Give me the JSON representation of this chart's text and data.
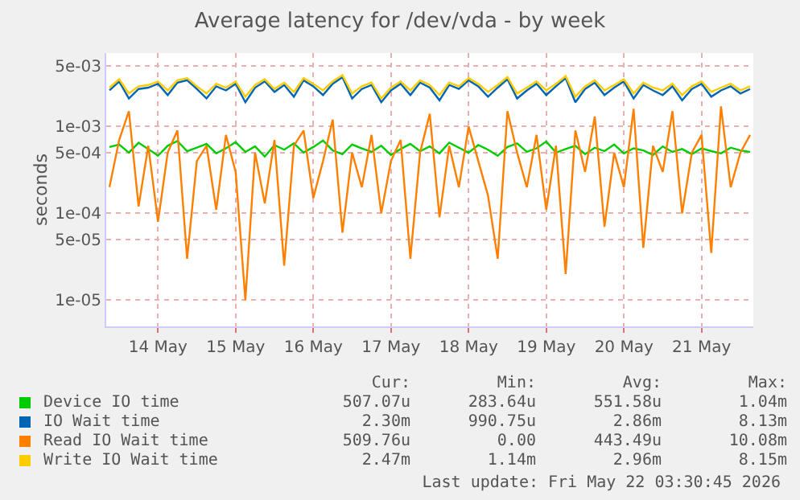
{
  "chart_data": {
    "type": "line",
    "title": "Average latency for /dev/vda - by week",
    "ylabel": "seconds",
    "log": true,
    "grid": true,
    "legend": "bottom",
    "marker": "none",
    "line_style": "solid",
    "xlim": [
      "2026-05-13T20:00",
      "2026-05-22T04:00"
    ],
    "xticks": [
      {
        "value": "2026-05-14T12:00",
        "label": "14 May"
      },
      {
        "value": "2026-05-15T12:00",
        "label": "15 May"
      },
      {
        "value": "2026-05-16T12:00",
        "label": "16 May"
      },
      {
        "value": "2026-05-17T12:00",
        "label": "17 May"
      },
      {
        "value": "2026-05-18T12:00",
        "label": "18 May"
      },
      {
        "value": "2026-05-19T12:00",
        "label": "19 May"
      },
      {
        "value": "2026-05-20T12:00",
        "label": "20 May"
      },
      {
        "value": "2026-05-21T12:00",
        "label": "21 May"
      }
    ],
    "ylim": [
      5e-06,
      0.007
    ],
    "yticks": [
      {
        "value": 1e-05,
        "label": "1e-05"
      },
      {
        "value": 5e-05,
        "label": "5e-05"
      },
      {
        "value": 0.0001,
        "label": "1e-04"
      },
      {
        "value": 0.0005,
        "label": "5e-04"
      },
      {
        "value": 0.001,
        "label": "1e-03"
      },
      {
        "value": 0.005,
        "label": "5e-03"
      }
    ],
    "x": [
      "2026-05-13T21:00",
      "2026-05-14T00:00",
      "2026-05-14T03:00",
      "2026-05-14T06:00",
      "2026-05-14T09:00",
      "2026-05-14T12:00",
      "2026-05-14T15:00",
      "2026-05-14T18:00",
      "2026-05-14T21:00",
      "2026-05-15T00:00",
      "2026-05-15T03:00",
      "2026-05-15T06:00",
      "2026-05-15T09:00",
      "2026-05-15T12:00",
      "2026-05-15T15:00",
      "2026-05-15T18:00",
      "2026-05-15T21:00",
      "2026-05-16T00:00",
      "2026-05-16T03:00",
      "2026-05-16T06:00",
      "2026-05-16T09:00",
      "2026-05-16T12:00",
      "2026-05-16T15:00",
      "2026-05-16T18:00",
      "2026-05-16T21:00",
      "2026-05-17T00:00",
      "2026-05-17T03:00",
      "2026-05-17T06:00",
      "2026-05-17T09:00",
      "2026-05-17T12:00",
      "2026-05-17T15:00",
      "2026-05-17T18:00",
      "2026-05-17T21:00",
      "2026-05-18T00:00",
      "2026-05-18T03:00",
      "2026-05-18T06:00",
      "2026-05-18T09:00",
      "2026-05-18T12:00",
      "2026-05-18T15:00",
      "2026-05-18T18:00",
      "2026-05-18T21:00",
      "2026-05-19T00:00",
      "2026-05-19T03:00",
      "2026-05-19T06:00",
      "2026-05-19T09:00",
      "2026-05-19T12:00",
      "2026-05-19T15:00",
      "2026-05-19T18:00",
      "2026-05-19T21:00",
      "2026-05-20T00:00",
      "2026-05-20T03:00",
      "2026-05-20T06:00",
      "2026-05-20T09:00",
      "2026-05-20T12:00",
      "2026-05-20T15:00",
      "2026-05-20T18:00",
      "2026-05-20T21:00",
      "2026-05-21T00:00",
      "2026-05-21T03:00",
      "2026-05-21T06:00",
      "2026-05-21T09:00",
      "2026-05-21T12:00",
      "2026-05-21T15:00",
      "2026-05-21T18:00",
      "2026-05-21T21:00",
      "2026-05-22T00:00",
      "2026-05-22T03:00"
    ],
    "series": [
      {
        "name": "Device IO time",
        "color": "#00cc00",
        "values": [
          0.00058,
          0.00062,
          0.0005,
          0.00065,
          0.00055,
          0.00046,
          0.0006,
          0.00068,
          0.00052,
          0.00057,
          0.00063,
          0.00049,
          0.00056,
          0.00066,
          0.00051,
          0.00059,
          0.00045,
          0.00061,
          0.00054,
          0.00064,
          0.0005,
          0.00058,
          0.00069,
          0.00053,
          0.00048,
          0.00062,
          0.00056,
          0.00051,
          0.0006,
          0.00047,
          0.00055,
          0.00063,
          0.00052,
          0.00059,
          0.00049,
          0.00065,
          0.00057,
          0.0005,
          0.00061,
          0.00054,
          0.00046,
          0.00058,
          0.00064,
          0.00051,
          0.00056,
          0.00067,
          0.0005,
          0.00055,
          0.0006,
          0.00048,
          0.00057,
          0.00052,
          0.00062,
          0.00049,
          0.00056,
          0.00053,
          0.00047,
          0.00059,
          0.00051,
          0.00055,
          0.00048,
          0.00056,
          0.00052,
          0.00049,
          0.00057,
          0.00053,
          0.00051
        ]
      },
      {
        "name": "IO Wait time",
        "color": "#0066b3",
        "values": [
          0.0026,
          0.0033,
          0.0021,
          0.0027,
          0.0028,
          0.0031,
          0.0023,
          0.0032,
          0.0034,
          0.0027,
          0.0021,
          0.0029,
          0.0026,
          0.0031,
          0.0019,
          0.0028,
          0.0033,
          0.0025,
          0.003,
          0.0022,
          0.0034,
          0.0029,
          0.0023,
          0.0031,
          0.0037,
          0.0021,
          0.0027,
          0.003,
          0.0019,
          0.0026,
          0.0031,
          0.0023,
          0.0032,
          0.0028,
          0.002,
          0.003,
          0.0027,
          0.0034,
          0.0029,
          0.0022,
          0.0028,
          0.0035,
          0.0021,
          0.0026,
          0.0031,
          0.0023,
          0.0029,
          0.0036,
          0.0019,
          0.0027,
          0.0032,
          0.0023,
          0.0028,
          0.0033,
          0.0021,
          0.003,
          0.0026,
          0.0023,
          0.0029,
          0.002,
          0.0027,
          0.0031,
          0.0022,
          0.0026,
          0.0029,
          0.0024,
          0.0027
        ]
      },
      {
        "name": "Read IO Wait time",
        "color": "#ff8000",
        "values": [
          0.0002,
          0.0007,
          0.0015,
          0.00012,
          0.0006,
          8e-05,
          0.0005,
          0.0009,
          3e-05,
          0.0004,
          0.0006,
          0.00011,
          0.0008,
          0.0003,
          1e-05,
          0.0005,
          0.00013,
          0.0007,
          2.5e-05,
          0.0006,
          0.0009,
          0.00015,
          0.0004,
          0.0012,
          6e-05,
          0.0005,
          0.0002,
          0.0008,
          0.0001,
          0.0004,
          0.0007,
          3e-05,
          0.0005,
          0.0014,
          9e-05,
          0.0006,
          0.0002,
          0.001,
          0.0004,
          0.00016,
          3e-05,
          0.0015,
          0.0005,
          0.0002,
          0.0008,
          0.00011,
          0.0006,
          2e-05,
          0.0009,
          0.0003,
          0.0013,
          7e-05,
          0.0005,
          0.0002,
          0.0016,
          4e-05,
          0.0006,
          0.0003,
          0.0015,
          0.0001,
          0.0005,
          0.0008,
          3.5e-05,
          0.0017,
          0.0002,
          0.0005,
          0.0008
        ]
      },
      {
        "name": "Write IO Wait time",
        "color": "#ffcc00",
        "values": [
          0.0028,
          0.0035,
          0.0024,
          0.0029,
          0.003,
          0.0033,
          0.0026,
          0.0034,
          0.0036,
          0.0029,
          0.0024,
          0.0031,
          0.0028,
          0.0033,
          0.0022,
          0.003,
          0.0035,
          0.0027,
          0.0032,
          0.0025,
          0.0036,
          0.0031,
          0.0026,
          0.0033,
          0.0039,
          0.0024,
          0.0029,
          0.0032,
          0.0021,
          0.0028,
          0.0033,
          0.0026,
          0.0034,
          0.003,
          0.0023,
          0.0032,
          0.0029,
          0.0036,
          0.0031,
          0.0025,
          0.003,
          0.0037,
          0.0024,
          0.0028,
          0.0033,
          0.0026,
          0.0031,
          0.0038,
          0.0022,
          0.0029,
          0.0034,
          0.0026,
          0.003,
          0.0035,
          0.0024,
          0.0032,
          0.0028,
          0.0026,
          0.0031,
          0.0023,
          0.0029,
          0.0033,
          0.0025,
          0.0028,
          0.0031,
          0.0026,
          0.0029
        ]
      }
    ],
    "annotations": [
      "Cur:",
      "Min:",
      "Avg:",
      "Max:",
      "507.07u",
      "283.64u",
      "551.58u",
      "1.04m",
      "2.30m",
      "990.75u",
      "2.86m",
      "8.13m",
      "509.76u",
      "0.00",
      "443.49u",
      "10.08m",
      "2.47m",
      "1.14m",
      "2.96m",
      "8.15m",
      "Last update: Fri May 22 03:30:45 2026"
    ]
  }
}
